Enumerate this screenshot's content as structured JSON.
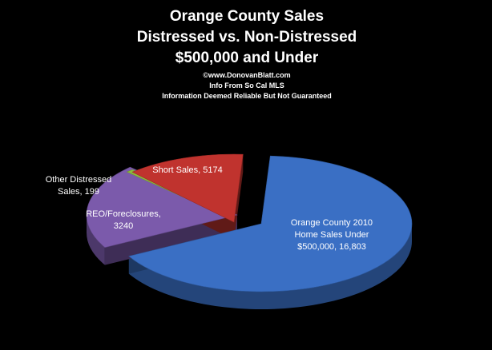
{
  "chart_data": {
    "type": "pie",
    "title": [
      "Orange County Sales",
      "Distressed vs. Non-Distressed",
      "$500,000 and Under"
    ],
    "subtitle": [
      "©www.DonovanBlatt.com",
      "Info  From So Cal MLS",
      "Information Deemed Reliable But Not Guaranteed"
    ],
    "slices": [
      {
        "label": [
          "Orange County    2010",
          "Home Sales Under",
          "$500,000, 16,803"
        ],
        "value": 16803,
        "color": "#3a6fc4",
        "label_color": "#ffffff"
      },
      {
        "label": [
          "Short Sales, 5174"
        ],
        "value": 5174,
        "color": "#7b5aab",
        "label_color": "#ffffff"
      },
      {
        "label": [
          "Other Distressed",
          "Sales, 199"
        ],
        "value": 199,
        "color": "#8dbb3c",
        "label_color": "#ffffff"
      },
      {
        "label": [
          "REO/Foreclosures,",
          "3240"
        ],
        "value": 3240,
        "color": "#c0332e",
        "label_color": "#ffffff"
      }
    ],
    "legend": "none"
  }
}
